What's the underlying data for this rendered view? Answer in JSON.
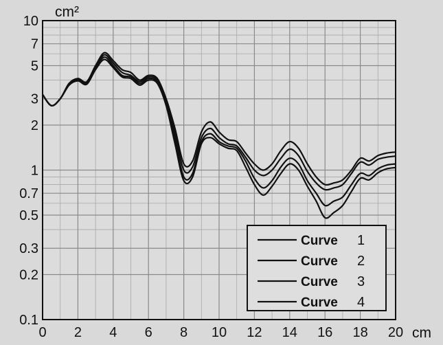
{
  "chart_data": {
    "type": "line",
    "title": "",
    "xlabel": "",
    "ylabel": "",
    "x_unit": "cm",
    "y_unit": "cm²",
    "y_scale": "log",
    "xlim": [
      0,
      20
    ],
    "ylim": [
      0.1,
      10
    ],
    "x_ticks": [
      "0",
      "2",
      "4",
      "6",
      "8",
      "10",
      "12",
      "14",
      "16",
      "18",
      "20"
    ],
    "y_ticks": [
      {
        "value": 10,
        "label": "10"
      },
      {
        "value": 7,
        "label": "7"
      },
      {
        "value": 5,
        "label": "5"
      },
      {
        "value": 3,
        "label": "3"
      },
      {
        "value": 2,
        "label": "2"
      },
      {
        "value": 1,
        "label": "1"
      },
      {
        "value": 0.7,
        "label": "0.7"
      },
      {
        "value": 0.5,
        "label": "0.5"
      },
      {
        "value": 0.3,
        "label": "0.3"
      },
      {
        "value": 0.2,
        "label": "0.2"
      },
      {
        "value": 0.1,
        "label": "0.1"
      }
    ],
    "grid": true,
    "legend_position": "bottom-right",
    "x": [
      0,
      0.5,
      1,
      1.5,
      2,
      2.5,
      3,
      3.5,
      4,
      4.5,
      5,
      5.5,
      6,
      6.5,
      7,
      7.5,
      8,
      8.5,
      9,
      9.5,
      10,
      10.5,
      11,
      11.5,
      12,
      12.5,
      13,
      13.5,
      14,
      14.5,
      15,
      15.5,
      16,
      16.5,
      17,
      17.5,
      18,
      18.5,
      19,
      19.5,
      20
    ],
    "series": [
      {
        "name": "Curve",
        "number": "1",
        "values": [
          3.2,
          2.7,
          3.0,
          3.8,
          4.1,
          3.9,
          5.0,
          6.1,
          5.4,
          4.7,
          4.5,
          4.0,
          4.3,
          4.1,
          3.0,
          1.9,
          1.1,
          1.15,
          1.8,
          2.1,
          1.8,
          1.6,
          1.55,
          1.3,
          1.1,
          1.0,
          1.1,
          1.35,
          1.55,
          1.4,
          1.1,
          0.9,
          0.8,
          0.82,
          0.86,
          1.0,
          1.2,
          1.15,
          1.25,
          1.3,
          1.32
        ]
      },
      {
        "name": "Curve",
        "number": "2",
        "values": [
          3.2,
          2.7,
          3.0,
          3.75,
          4.05,
          3.85,
          4.9,
          5.9,
          5.2,
          4.5,
          4.3,
          3.9,
          4.2,
          4.0,
          2.9,
          1.75,
          1.0,
          1.05,
          1.65,
          1.9,
          1.65,
          1.5,
          1.45,
          1.22,
          1.0,
          0.92,
          1.0,
          1.2,
          1.38,
          1.25,
          0.98,
          0.82,
          0.74,
          0.76,
          0.8,
          0.95,
          1.13,
          1.08,
          1.18,
          1.22,
          1.24
        ]
      },
      {
        "name": "Curve",
        "number": "3",
        "values": [
          3.2,
          2.7,
          3.0,
          3.7,
          4.0,
          3.8,
          4.8,
          5.7,
          5.0,
          4.3,
          4.2,
          3.8,
          4.1,
          3.9,
          2.8,
          1.6,
          0.9,
          0.95,
          1.55,
          1.75,
          1.55,
          1.45,
          1.4,
          1.15,
          0.88,
          0.76,
          0.85,
          1.05,
          1.2,
          1.1,
          0.85,
          0.7,
          0.58,
          0.62,
          0.66,
          0.8,
          0.95,
          0.92,
          1.02,
          1.08,
          1.1
        ]
      },
      {
        "name": "Curve",
        "number": "4",
        "values": [
          3.2,
          2.7,
          3.0,
          3.7,
          3.95,
          3.75,
          4.7,
          5.5,
          4.85,
          4.2,
          4.1,
          3.7,
          4.0,
          3.8,
          2.7,
          1.5,
          0.85,
          0.9,
          1.5,
          1.65,
          1.5,
          1.4,
          1.35,
          1.05,
          0.8,
          0.68,
          0.78,
          0.95,
          1.1,
          1.0,
          0.78,
          0.62,
          0.48,
          0.52,
          0.58,
          0.72,
          0.88,
          0.86,
          0.96,
          1.02,
          1.04
        ]
      }
    ]
  }
}
